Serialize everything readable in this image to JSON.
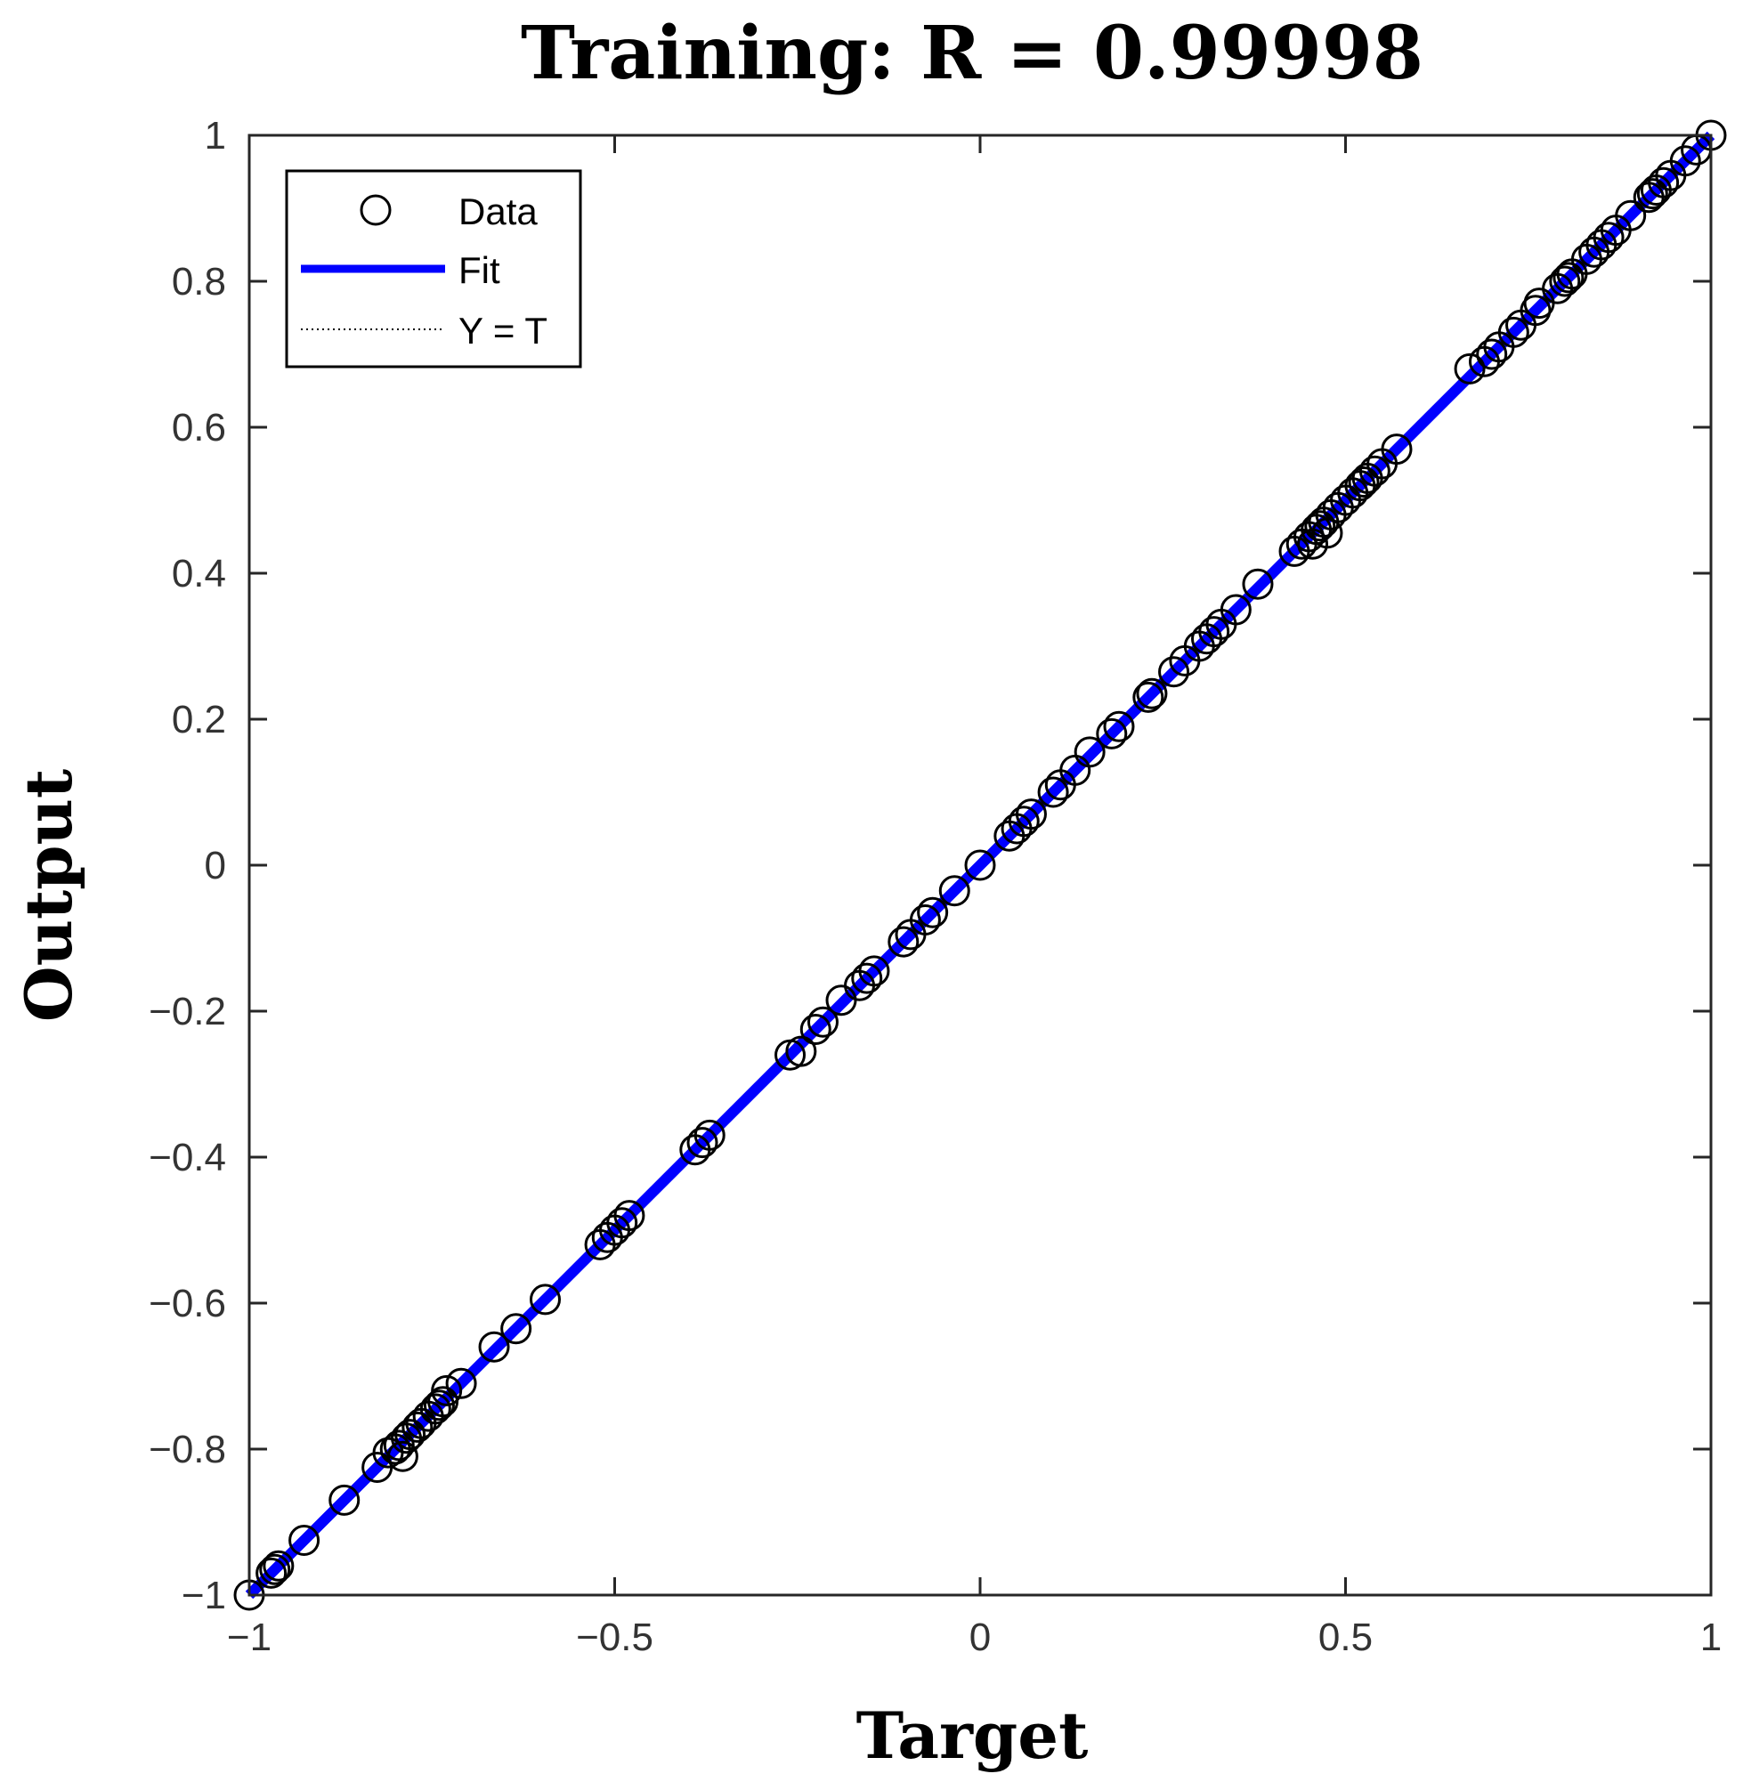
{
  "chart_data": {
    "type": "scatter",
    "title": "Training: R = 0.99998",
    "xlabel": "Target",
    "ylabel": "Output",
    "xlim": [
      -1,
      1
    ],
    "ylim": [
      -1,
      1
    ],
    "x_ticks": [
      "−1",
      "−0.5",
      "0",
      "0.5",
      "1"
    ],
    "y_ticks": [
      "−1",
      "−0.8",
      "−0.6",
      "−0.4",
      "−0.2",
      "0",
      "0.2",
      "0.4",
      "0.6",
      "0.8",
      "1"
    ],
    "grid": false,
    "legend_position": "top-left",
    "legend": [
      {
        "label": "Data",
        "style": "circle"
      },
      {
        "label": "Fit",
        "style": "solid-line"
      },
      {
        "label": "Y = T",
        "style": "dotted-line"
      }
    ],
    "colors": {
      "fit": "#0000ff",
      "data": "#000000",
      "identity": "#000000"
    },
    "fit_line": {
      "x": [
        -1,
        1
      ],
      "y": [
        -1,
        1
      ]
    },
    "identity_line": {
      "x": [
        -1,
        1
      ],
      "y": [
        -1,
        1
      ]
    },
    "series": [
      {
        "name": "Data",
        "x": [
          -1.0,
          -0.97,
          -0.965,
          -0.96,
          -0.925,
          -0.87,
          -0.825,
          -0.81,
          -0.8,
          -0.795,
          -0.79,
          -0.785,
          -0.78,
          -0.77,
          -0.765,
          -0.755,
          -0.745,
          -0.74,
          -0.735,
          -0.73,
          -0.71,
          -0.665,
          -0.635,
          -0.595,
          -0.52,
          -0.51,
          -0.5,
          -0.49,
          -0.48,
          -0.39,
          -0.38,
          -0.37,
          -0.26,
          -0.245,
          -0.225,
          -0.215,
          -0.19,
          -0.165,
          -0.155,
          -0.145,
          -0.105,
          -0.095,
          -0.075,
          -0.065,
          -0.035,
          0.0,
          0.04,
          0.05,
          0.06,
          0.07,
          0.1,
          0.11,
          0.13,
          0.15,
          0.18,
          0.19,
          0.23,
          0.235,
          0.265,
          0.28,
          0.3,
          0.31,
          0.32,
          0.33,
          0.35,
          0.38,
          0.43,
          0.44,
          0.45,
          0.455,
          0.46,
          0.465,
          0.47,
          0.475,
          0.48,
          0.49,
          0.5,
          0.51,
          0.52,
          0.525,
          0.53,
          0.54,
          0.55,
          0.57,
          0.67,
          0.69,
          0.7,
          0.71,
          0.73,
          0.74,
          0.76,
          0.765,
          0.79,
          0.8,
          0.805,
          0.81,
          0.83,
          0.84,
          0.85,
          0.86,
          0.87,
          0.89,
          0.915,
          0.92,
          0.925,
          0.935,
          0.945,
          0.965,
          0.98,
          1.0
        ],
        "y": [
          -1.0,
          -0.97,
          -0.965,
          -0.96,
          -0.925,
          -0.87,
          -0.825,
          -0.805,
          -0.8,
          -0.795,
          -0.81,
          -0.785,
          -0.78,
          -0.77,
          -0.765,
          -0.755,
          -0.745,
          -0.74,
          -0.735,
          -0.72,
          -0.71,
          -0.66,
          -0.635,
          -0.595,
          -0.52,
          -0.51,
          -0.5,
          -0.49,
          -0.48,
          -0.39,
          -0.38,
          -0.37,
          -0.26,
          -0.255,
          -0.225,
          -0.215,
          -0.185,
          -0.165,
          -0.155,
          -0.145,
          -0.105,
          -0.095,
          -0.075,
          -0.065,
          -0.035,
          0.0,
          0.04,
          0.05,
          0.06,
          0.07,
          0.1,
          0.11,
          0.13,
          0.155,
          0.18,
          0.19,
          0.23,
          0.235,
          0.265,
          0.28,
          0.3,
          0.31,
          0.32,
          0.33,
          0.35,
          0.385,
          0.43,
          0.44,
          0.45,
          0.44,
          0.46,
          0.465,
          0.47,
          0.455,
          0.48,
          0.49,
          0.5,
          0.51,
          0.52,
          0.525,
          0.53,
          0.54,
          0.55,
          0.57,
          0.68,
          0.69,
          0.7,
          0.71,
          0.73,
          0.74,
          0.76,
          0.77,
          0.79,
          0.8,
          0.805,
          0.81,
          0.83,
          0.84,
          0.85,
          0.86,
          0.87,
          0.89,
          0.915,
          0.92,
          0.925,
          0.935,
          0.945,
          0.965,
          0.98,
          1.0
        ]
      }
    ]
  }
}
